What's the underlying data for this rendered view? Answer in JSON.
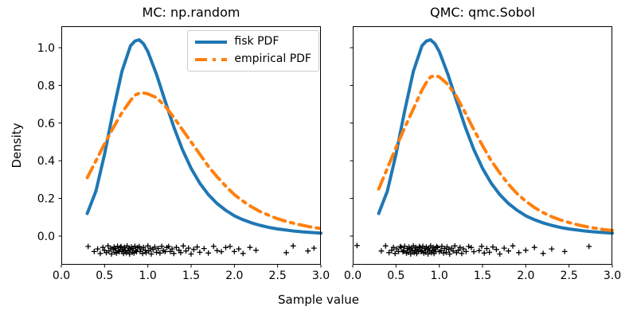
{
  "figure": {
    "xlabel": "Sample value",
    "ylabel": "Density",
    "xlim": [
      0.0,
      3.0
    ],
    "ylim": [
      -0.152,
      1.114
    ],
    "x_ticks": [
      0.0,
      0.5,
      1.0,
      1.5,
      2.0,
      2.5,
      3.0
    ],
    "y_ticks": [
      0.0,
      0.2,
      0.4,
      0.6,
      0.8,
      1.0
    ],
    "background": "#ffffff",
    "frame_color": "#000000",
    "tick_label_color": "#000000"
  },
  "legend": {
    "position": "upper-right",
    "border_color": "#cccccc",
    "items": [
      {
        "label": "fisk PDF",
        "color": "#1f77b4",
        "linestyle": "solid"
      },
      {
        "label": "empirical PDF",
        "color": "#ff7f0e",
        "linestyle": "dashdot"
      }
    ]
  },
  "chart_data": [
    {
      "type": "line",
      "title": "MC: np.random",
      "show_y_tick_labels": true,
      "series": [
        {
          "name": "fisk PDF",
          "kind": "line",
          "color": "#1f77b4",
          "linestyle": "solid",
          "linewidth": 4,
          "x": [
            0.3,
            0.4,
            0.5,
            0.6,
            0.7,
            0.8,
            0.85,
            0.9,
            0.95,
            1.0,
            1.1,
            1.2,
            1.3,
            1.4,
            1.5,
            1.6,
            1.7,
            1.8,
            1.9,
            2.0,
            2.1,
            2.2,
            2.3,
            2.4,
            2.5,
            2.6,
            2.7,
            2.8,
            2.9,
            3.0
          ],
          "y": [
            0.12,
            0.239,
            0.434,
            0.664,
            0.874,
            1.01,
            1.035,
            1.042,
            1.021,
            0.98,
            0.859,
            0.717,
            0.579,
            0.459,
            0.36,
            0.281,
            0.22,
            0.173,
            0.137,
            0.108,
            0.087,
            0.07,
            0.057,
            0.046,
            0.038,
            0.032,
            0.026,
            0.022,
            0.019,
            0.016
          ]
        },
        {
          "name": "empirical PDF",
          "kind": "line",
          "color": "#ff7f0e",
          "linestyle": "dashdot",
          "linewidth": 4,
          "x": [
            0.3,
            0.4,
            0.5,
            0.6,
            0.7,
            0.8,
            0.85,
            0.9,
            0.95,
            1.0,
            1.1,
            1.2,
            1.3,
            1.4,
            1.5,
            1.6,
            1.7,
            1.8,
            1.9,
            2.0,
            2.1,
            2.2,
            2.3,
            2.4,
            2.5,
            2.6,
            2.7,
            2.8,
            2.9,
            3.0
          ],
          "y": [
            0.31,
            0.4,
            0.49,
            0.575,
            0.655,
            0.72,
            0.748,
            0.758,
            0.76,
            0.755,
            0.735,
            0.69,
            0.63,
            0.565,
            0.5,
            0.435,
            0.37,
            0.315,
            0.265,
            0.22,
            0.185,
            0.155,
            0.13,
            0.11,
            0.092,
            0.078,
            0.066,
            0.056,
            0.047,
            0.04
          ]
        },
        {
          "name": "samples",
          "kind": "rug",
          "marker": "plus",
          "color": "#000000",
          "x": [
            0.31,
            0.38,
            0.42,
            0.45,
            0.48,
            0.5,
            0.52,
            0.54,
            0.55,
            0.57,
            0.58,
            0.6,
            0.61,
            0.62,
            0.63,
            0.64,
            0.65,
            0.66,
            0.67,
            0.68,
            0.69,
            0.7,
            0.71,
            0.72,
            0.73,
            0.74,
            0.75,
            0.76,
            0.77,
            0.78,
            0.79,
            0.8,
            0.81,
            0.82,
            0.83,
            0.84,
            0.85,
            0.86,
            0.87,
            0.88,
            0.9,
            0.91,
            0.92,
            0.94,
            0.95,
            0.97,
            0.98,
            1.0,
            1.01,
            1.03,
            1.04,
            1.06,
            1.08,
            1.1,
            1.12,
            1.14,
            1.16,
            1.18,
            1.2,
            1.22,
            1.24,
            1.26,
            1.28,
            1.3,
            1.33,
            1.36,
            1.38,
            1.41,
            1.44,
            1.47,
            1.5,
            1.53,
            1.57,
            1.6,
            1.65,
            1.7,
            1.76,
            1.8,
            1.85,
            1.9,
            1.95,
            2.0,
            2.05,
            2.1,
            2.18,
            2.25,
            2.6,
            2.68,
            2.85,
            2.92
          ],
          "y": [
            -0.055,
            -0.082,
            -0.068,
            -0.092,
            -0.06,
            -0.075,
            -0.088,
            -0.052,
            -0.079,
            -0.064,
            -0.095,
            -0.071,
            -0.058,
            -0.086,
            -0.066,
            -0.09,
            -0.054,
            -0.077,
            -0.083,
            -0.061,
            -0.055,
            -0.082,
            -0.068,
            -0.092,
            -0.06,
            -0.075,
            -0.088,
            -0.052,
            -0.079,
            -0.064,
            -0.095,
            -0.071,
            -0.058,
            -0.086,
            -0.066,
            -0.09,
            -0.054,
            -0.077,
            -0.083,
            -0.061,
            -0.055,
            -0.082,
            -0.068,
            -0.092,
            -0.06,
            -0.075,
            -0.088,
            -0.052,
            -0.079,
            -0.064,
            -0.095,
            -0.071,
            -0.058,
            -0.086,
            -0.066,
            -0.09,
            -0.054,
            -0.077,
            -0.083,
            -0.061,
            -0.055,
            -0.082,
            -0.068,
            -0.092,
            -0.06,
            -0.075,
            -0.088,
            -0.052,
            -0.079,
            -0.064,
            -0.095,
            -0.071,
            -0.058,
            -0.086,
            -0.066,
            -0.09,
            -0.054,
            -0.077,
            -0.083,
            -0.061,
            -0.055,
            -0.082,
            -0.068,
            -0.092,
            -0.06,
            -0.075,
            -0.088,
            -0.052,
            -0.079,
            -0.064
          ]
        }
      ]
    },
    {
      "type": "line",
      "title": "QMC: qmc.Sobol",
      "show_y_tick_labels": false,
      "series": [
        {
          "name": "fisk PDF",
          "kind": "line",
          "color": "#1f77b4",
          "linestyle": "solid",
          "linewidth": 4,
          "x": [
            0.3,
            0.4,
            0.5,
            0.6,
            0.7,
            0.8,
            0.85,
            0.9,
            0.95,
            1.0,
            1.1,
            1.2,
            1.3,
            1.4,
            1.5,
            1.6,
            1.7,
            1.8,
            1.9,
            2.0,
            2.1,
            2.2,
            2.3,
            2.4,
            2.5,
            2.6,
            2.7,
            2.8,
            2.9,
            3.0
          ],
          "y": [
            0.12,
            0.239,
            0.434,
            0.664,
            0.874,
            1.01,
            1.035,
            1.042,
            1.021,
            0.98,
            0.859,
            0.717,
            0.579,
            0.459,
            0.36,
            0.281,
            0.22,
            0.173,
            0.137,
            0.108,
            0.087,
            0.07,
            0.057,
            0.046,
            0.038,
            0.032,
            0.026,
            0.022,
            0.019,
            0.016
          ]
        },
        {
          "name": "empirical PDF",
          "kind": "line",
          "color": "#ff7f0e",
          "linestyle": "dashdot",
          "linewidth": 4,
          "x": [
            0.3,
            0.4,
            0.5,
            0.6,
            0.7,
            0.8,
            0.85,
            0.9,
            0.95,
            1.0,
            1.1,
            1.2,
            1.3,
            1.4,
            1.5,
            1.6,
            1.7,
            1.8,
            1.9,
            2.0,
            2.1,
            2.2,
            2.3,
            2.4,
            2.5,
            2.6,
            2.7,
            2.8,
            2.9,
            3.0
          ],
          "y": [
            0.25,
            0.36,
            0.47,
            0.575,
            0.675,
            0.775,
            0.815,
            0.845,
            0.852,
            0.845,
            0.805,
            0.74,
            0.655,
            0.565,
            0.48,
            0.4,
            0.335,
            0.275,
            0.225,
            0.185,
            0.152,
            0.125,
            0.103,
            0.086,
            0.072,
            0.06,
            0.05,
            0.042,
            0.035,
            0.03
          ]
        },
        {
          "name": "samples",
          "kind": "rug",
          "marker": "plus",
          "color": "#000000",
          "x": [
            0.05,
            0.33,
            0.38,
            0.42,
            0.45,
            0.47,
            0.49,
            0.51,
            0.53,
            0.55,
            0.56,
            0.58,
            0.59,
            0.6,
            0.62,
            0.63,
            0.64,
            0.65,
            0.66,
            0.67,
            0.68,
            0.69,
            0.7,
            0.71,
            0.72,
            0.73,
            0.74,
            0.75,
            0.76,
            0.77,
            0.78,
            0.79,
            0.8,
            0.81,
            0.82,
            0.83,
            0.84,
            0.85,
            0.86,
            0.87,
            0.88,
            0.89,
            0.9,
            0.91,
            0.92,
            0.93,
            0.94,
            0.95,
            0.96,
            0.97,
            0.98,
            1.0,
            1.02,
            1.03,
            1.05,
            1.06,
            1.08,
            1.09,
            1.11,
            1.12,
            1.14,
            1.16,
            1.18,
            1.2,
            1.22,
            1.24,
            1.26,
            1.28,
            1.31,
            1.34,
            1.37,
            1.4,
            1.46,
            1.49,
            1.52,
            1.55,
            1.58,
            1.62,
            1.66,
            1.7,
            1.75,
            1.8,
            1.85,
            1.92,
            2.0,
            2.1,
            2.2,
            2.3,
            2.45,
            2.73
          ],
          "y": [
            -0.05,
            -0.079,
            -0.052,
            -0.088,
            -0.075,
            -0.06,
            -0.092,
            -0.068,
            -0.082,
            -0.055,
            -0.061,
            -0.083,
            -0.077,
            -0.054,
            -0.09,
            -0.066,
            -0.086,
            -0.058,
            -0.071,
            -0.095,
            -0.064,
            -0.079,
            -0.052,
            -0.088,
            -0.075,
            -0.06,
            -0.092,
            -0.068,
            -0.082,
            -0.055,
            -0.061,
            -0.083,
            -0.077,
            -0.054,
            -0.09,
            -0.066,
            -0.086,
            -0.058,
            -0.071,
            -0.095,
            -0.064,
            -0.079,
            -0.052,
            -0.088,
            -0.075,
            -0.06,
            -0.092,
            -0.068,
            -0.082,
            -0.055,
            -0.061,
            -0.083,
            -0.077,
            -0.054,
            -0.09,
            -0.066,
            -0.086,
            -0.058,
            -0.071,
            -0.095,
            -0.064,
            -0.079,
            -0.052,
            -0.088,
            -0.075,
            -0.06,
            -0.092,
            -0.068,
            -0.082,
            -0.055,
            -0.061,
            -0.083,
            -0.077,
            -0.054,
            -0.09,
            -0.066,
            -0.086,
            -0.058,
            -0.071,
            -0.095,
            -0.064,
            -0.079,
            -0.052,
            -0.088,
            -0.075,
            -0.06,
            -0.092,
            -0.068,
            -0.082,
            -0.055
          ]
        }
      ]
    }
  ]
}
